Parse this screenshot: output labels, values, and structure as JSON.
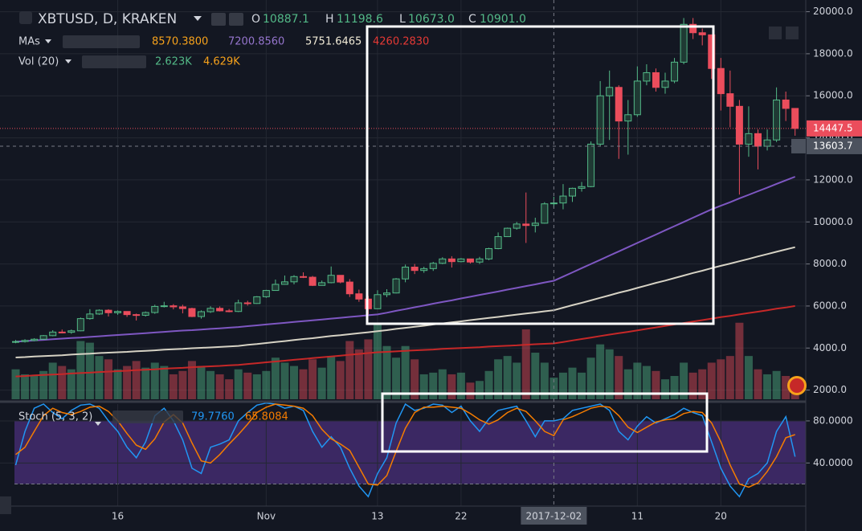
{
  "header": {
    "symbol": "XBTUSD, D, KRAKEN",
    "ohlc": [
      {
        "key": "O",
        "text": "10887.1"
      },
      {
        "key": "H",
        "text": "11198.6"
      },
      {
        "key": "L",
        "text": "10673.0"
      },
      {
        "key": "C",
        "text": "10901.0"
      }
    ],
    "ma_title": "MAs",
    "ma_legend": [
      "8570.3800",
      "7200.8560",
      "5751.6465",
      "4260.2830"
    ],
    "ma_legend_colors": [
      "#f7a21b",
      "#9575cd",
      "#f0ead6",
      "#e53935"
    ],
    "vol_title": "Vol (20)",
    "vol_legend": [
      "2.623K",
      "4.629K"
    ],
    "vol_legend_colors": [
      "#53b987",
      "#f7a21b"
    ]
  },
  "chart_data": {
    "type": "candlestick",
    "categories": [
      null,
      null,
      null,
      null,
      null,
      null,
      null,
      null,
      null,
      null,
      null,
      "16",
      null,
      null,
      null,
      null,
      null,
      null,
      null,
      null,
      null,
      null,
      null,
      null,
      null,
      null,
      null,
      "Nov",
      null,
      null,
      null,
      null,
      null,
      null,
      null,
      null,
      null,
      null,
      null,
      "13",
      null,
      null,
      null,
      null,
      null,
      null,
      null,
      null,
      "22",
      null,
      null,
      null,
      null,
      null,
      null,
      null,
      null,
      null,
      "2017-12-02",
      null,
      null,
      null,
      null,
      null,
      null,
      null,
      null,
      "11",
      null,
      null,
      null,
      null,
      null,
      null,
      null,
      null,
      "20",
      null,
      null,
      null,
      null,
      null,
      null,
      null,
      null
    ],
    "open": [
      4280,
      4310,
      4360,
      4420,
      4590,
      4760,
      4750,
      4820,
      5400,
      5620,
      5800,
      5680,
      5740,
      5590,
      5560,
      5690,
      5980,
      6010,
      5960,
      5880,
      5500,
      5730,
      5890,
      5770,
      5740,
      6150,
      6120,
      6440,
      6740,
      7030,
      7150,
      7400,
      7370,
      6980,
      7110,
      7460,
      7140,
      6580,
      6330,
      5870,
      6540,
      6620,
      7290,
      7850,
      7690,
      7780,
      8030,
      8240,
      8110,
      8240,
      8090,
      8240,
      8730,
      9300,
      9700,
      9900,
      9830,
      9940,
      10887.1,
      10901,
      11230,
      11600,
      11680,
      13700,
      16000,
      16400,
      14800,
      15100,
      16700,
      17100,
      16400,
      16700,
      17600,
      19400,
      19000,
      18900,
      17300,
      16100,
      15500,
      13700,
      14200,
      13600,
      13900,
      15800,
      15400
    ],
    "high": [
      4380,
      4420,
      4470,
      4620,
      4850,
      4880,
      4880,
      5450,
      5850,
      5840,
      5850,
      5790,
      5750,
      5640,
      5740,
      6060,
      6200,
      6090,
      6060,
      5920,
      5790,
      5990,
      5980,
      5860,
      6300,
      6250,
      6470,
      6770,
      7260,
      7450,
      7470,
      7600,
      7430,
      7210,
      7880,
      7450,
      7280,
      6780,
      6480,
      6750,
      6800,
      7330,
      7970,
      8000,
      7870,
      8100,
      8320,
      8370,
      8280,
      8250,
      8340,
      8770,
      9500,
      9730,
      10000,
      11400,
      10200,
      10940,
      11198.6,
      11800,
      11630,
      11900,
      13830,
      16700,
      17200,
      16500,
      15800,
      17400,
      17500,
      17300,
      17100,
      17800,
      19700,
      19700,
      19200,
      18900,
      17800,
      17200,
      15800,
      15500,
      14400,
      14400,
      16400,
      16200,
      15400
    ],
    "low": [
      4230,
      4260,
      4320,
      4390,
      4560,
      4700,
      4680,
      4800,
      5350,
      5580,
      5500,
      5580,
      5480,
      5310,
      5500,
      5630,
      5930,
      5840,
      5650,
      5470,
      5400,
      5670,
      5740,
      5700,
      5710,
      6020,
      6100,
      6390,
      6730,
      7010,
      7030,
      7330,
      6950,
      6970,
      7080,
      7080,
      6430,
      6200,
      5610,
      5850,
      6420,
      6600,
      7130,
      7520,
      7580,
      7670,
      7990,
      7830,
      8080,
      8020,
      8000,
      8180,
      8700,
      9300,
      9630,
      9000,
      9500,
      9920,
      10673,
      10600,
      10950,
      11440,
      11650,
      13600,
      13900,
      13000,
      13200,
      15000,
      16500,
      16200,
      16100,
      16600,
      17500,
      18700,
      18400,
      16800,
      15300,
      14500,
      11300,
      13100,
      12500,
      13400,
      13800,
      14800,
      14100
    ],
    "close": [
      4310,
      4360,
      4420,
      4590,
      4760,
      4750,
      4820,
      5400,
      5620,
      5800,
      5680,
      5740,
      5590,
      5560,
      5690,
      5980,
      6010,
      5960,
      5880,
      5500,
      5730,
      5890,
      5770,
      5740,
      6150,
      6120,
      6440,
      6740,
      7030,
      7150,
      7400,
      7370,
      6980,
      7110,
      7460,
      7140,
      6580,
      6330,
      5870,
      6540,
      6620,
      7290,
      7850,
      7690,
      7780,
      8030,
      8240,
      8110,
      8240,
      8090,
      8240,
      8730,
      9300,
      9700,
      9900,
      9830,
      9940,
      10860,
      10901,
      11230,
      11600,
      11680,
      13700,
      16000,
      16400,
      14800,
      15100,
      16700,
      17100,
      16400,
      16700,
      17600,
      19400,
      19000,
      18900,
      17300,
      16100,
      15500,
      13700,
      14200,
      13600,
      13900,
      15800,
      15400,
      14447.5
    ],
    "volume": [
      1800,
      1500,
      1400,
      1700,
      2200,
      2000,
      1800,
      3500,
      3400,
      2600,
      2400,
      1800,
      2000,
      2300,
      1900,
      2200,
      2000,
      1500,
      1700,
      2300,
      2000,
      1700,
      1500,
      1200,
      1800,
      1600,
      1500,
      1700,
      2500,
      2200,
      2000,
      1800,
      2400,
      1900,
      2600,
      2300,
      3500,
      3000,
      3600,
      4600,
      3200,
      2500,
      3200,
      2400,
      1500,
      1600,
      1800,
      1500,
      1600,
      1000,
      1100,
      1700,
      2400,
      2600,
      2200,
      4200,
      2800,
      2200,
      1300,
      1600,
      1900,
      1600,
      2500,
      3300,
      3000,
      2600,
      1800,
      2200,
      2000,
      1700,
      1200,
      1400,
      2200,
      1600,
      1800,
      2200,
      2400,
      2600,
      4600,
      2600,
      1800,
      1500,
      1700,
      1400,
      1300
    ],
    "volume_ylim": [
      0,
      24000
    ],
    "up_color": "#53b987",
    "down_color": "#eb4d5c",
    "ylim": [
      1564,
      20557
    ],
    "yticks": [
      {
        "value": 2000,
        "label": "2000.0"
      },
      {
        "value": 4000,
        "label": "4000.0"
      },
      {
        "value": 6000,
        "label": "6000.0"
      },
      {
        "value": 8000,
        "label": "8000.0"
      },
      {
        "value": 10000,
        "label": "10000.0"
      },
      {
        "value": 12000,
        "label": "12000.0"
      },
      {
        "value": 14000,
        "label": "14000.0"
      },
      {
        "value": 16000,
        "label": "16000.0"
      },
      {
        "value": 18000,
        "label": "18000.0"
      },
      {
        "value": 20000,
        "label": "20000.0"
      }
    ],
    "grid": true,
    "last_price": 14447.5,
    "crosshair_price": 13603.7,
    "ma_series": [
      {
        "color": "#7e57c2",
        "values": [
          4300,
          4330,
          4360,
          4390,
          4420,
          4450,
          4480,
          4500,
          4530,
          4560,
          4590,
          4620,
          4650,
          4680,
          4710,
          4740,
          4770,
          4800,
          4830,
          4850,
          4880,
          4910,
          4940,
          4970,
          5000,
          5040,
          5080,
          5120,
          5160,
          5200,
          5240,
          5280,
          5320,
          5360,
          5400,
          5440,
          5480,
          5520,
          5560,
          5600,
          5680,
          5770,
          5850,
          5940,
          6020,
          6110,
          6190,
          6270,
          6360,
          6440,
          6530,
          6610,
          6690,
          6780,
          6860,
          6950,
          7030,
          7120,
          7200,
          7400,
          7600,
          7800,
          8000,
          8200,
          8400,
          8600,
          8800,
          9000,
          9200,
          9400,
          9600,
          9800,
          10000,
          10200,
          10400,
          10600,
          10770,
          10940,
          11120,
          11290,
          11460,
          11630,
          11810,
          11980,
          12150
        ]
      },
      {
        "color": "#d6d2c4",
        "values": [
          3550,
          3570,
          3600,
          3620,
          3640,
          3660,
          3690,
          3710,
          3730,
          3760,
          3780,
          3800,
          3820,
          3850,
          3870,
          3890,
          3920,
          3940,
          3960,
          3990,
          4010,
          4030,
          4050,
          4080,
          4100,
          4150,
          4190,
          4240,
          4290,
          4330,
          4380,
          4430,
          4470,
          4520,
          4570,
          4610,
          4660,
          4710,
          4750,
          4800,
          4850,
          4910,
          4960,
          5010,
          5060,
          5120,
          5170,
          5220,
          5270,
          5330,
          5380,
          5430,
          5480,
          5540,
          5590,
          5640,
          5690,
          5750,
          5800,
          5920,
          6040,
          6150,
          6270,
          6390,
          6510,
          6630,
          6740,
          6860,
          6980,
          7100,
          7210,
          7330,
          7450,
          7570,
          7680,
          7800,
          7910,
          8020,
          8130,
          8240,
          8360,
          8470,
          8580,
          8690,
          8800
        ]
      },
      {
        "color": "#c62828",
        "values": [
          2650,
          2670,
          2700,
          2720,
          2740,
          2760,
          2790,
          2810,
          2830,
          2860,
          2880,
          2900,
          2920,
          2950,
          2970,
          2990,
          3020,
          3040,
          3060,
          3090,
          3110,
          3130,
          3150,
          3180,
          3200,
          3240,
          3280,
          3320,
          3360,
          3400,
          3440,
          3480,
          3520,
          3560,
          3600,
          3640,
          3680,
          3720,
          3760,
          3800,
          3820,
          3840,
          3870,
          3890,
          3910,
          3930,
          3960,
          3980,
          4000,
          4020,
          4040,
          4070,
          4090,
          4110,
          4130,
          4160,
          4180,
          4200,
          4220,
          4290,
          4360,
          4430,
          4500,
          4570,
          4640,
          4710,
          4770,
          4840,
          4910,
          4980,
          5050,
          5120,
          5190,
          5260,
          5330,
          5400,
          5470,
          5530,
          5600,
          5670,
          5730,
          5800,
          5870,
          5930,
          6000
        ]
      }
    ],
    "stoch": {
      "title": "Stoch (5, 3, 2)",
      "k_label": "79.7760",
      "d_label": "65.8084",
      "k_color": "#2196f3",
      "d_color": "#f57c00",
      "ylim": [
        -1,
        96
      ],
      "yticks": [
        {
          "value": 40,
          "label": "40.0000"
        },
        {
          "value": 80,
          "label": "80.0000"
        }
      ],
      "band": [
        20,
        80
      ],
      "k": [
        38,
        70,
        92,
        96,
        88,
        82,
        90,
        95,
        96,
        92,
        80,
        70,
        55,
        45,
        60,
        85,
        92,
        80,
        62,
        35,
        30,
        55,
        58,
        62,
        80,
        88,
        95,
        97,
        96,
        92,
        94,
        90,
        70,
        55,
        65,
        55,
        35,
        18,
        8,
        30,
        45,
        78,
        96,
        90,
        92,
        96,
        95,
        88,
        94,
        80,
        70,
        82,
        90,
        92,
        94,
        80,
        65,
        80,
        80,
        82,
        90,
        92,
        94,
        96,
        90,
        70,
        62,
        75,
        84,
        78,
        82,
        86,
        92,
        88,
        85,
        60,
        35,
        18,
        8,
        25,
        30,
        40,
        70,
        84,
        46
      ],
      "d": [
        48,
        55,
        70,
        85,
        92,
        88,
        86,
        89,
        93,
        94,
        89,
        80,
        68,
        57,
        53,
        63,
        79,
        86,
        78,
        59,
        42,
        40,
        48,
        58,
        67,
        77,
        88,
        93,
        96,
        95,
        94,
        92,
        85,
        72,
        63,
        58,
        52,
        36,
        20,
        19,
        28,
        51,
        73,
        88,
        93,
        93,
        94,
        93,
        92,
        87,
        81,
        77,
        81,
        88,
        92,
        89,
        80,
        70,
        66,
        81,
        84,
        88,
        92,
        94,
        93,
        85,
        74,
        69,
        74,
        79,
        81,
        82,
        87,
        89,
        88,
        78,
        60,
        38,
        20,
        17,
        21,
        32,
        46,
        64,
        67
      ]
    }
  }
}
